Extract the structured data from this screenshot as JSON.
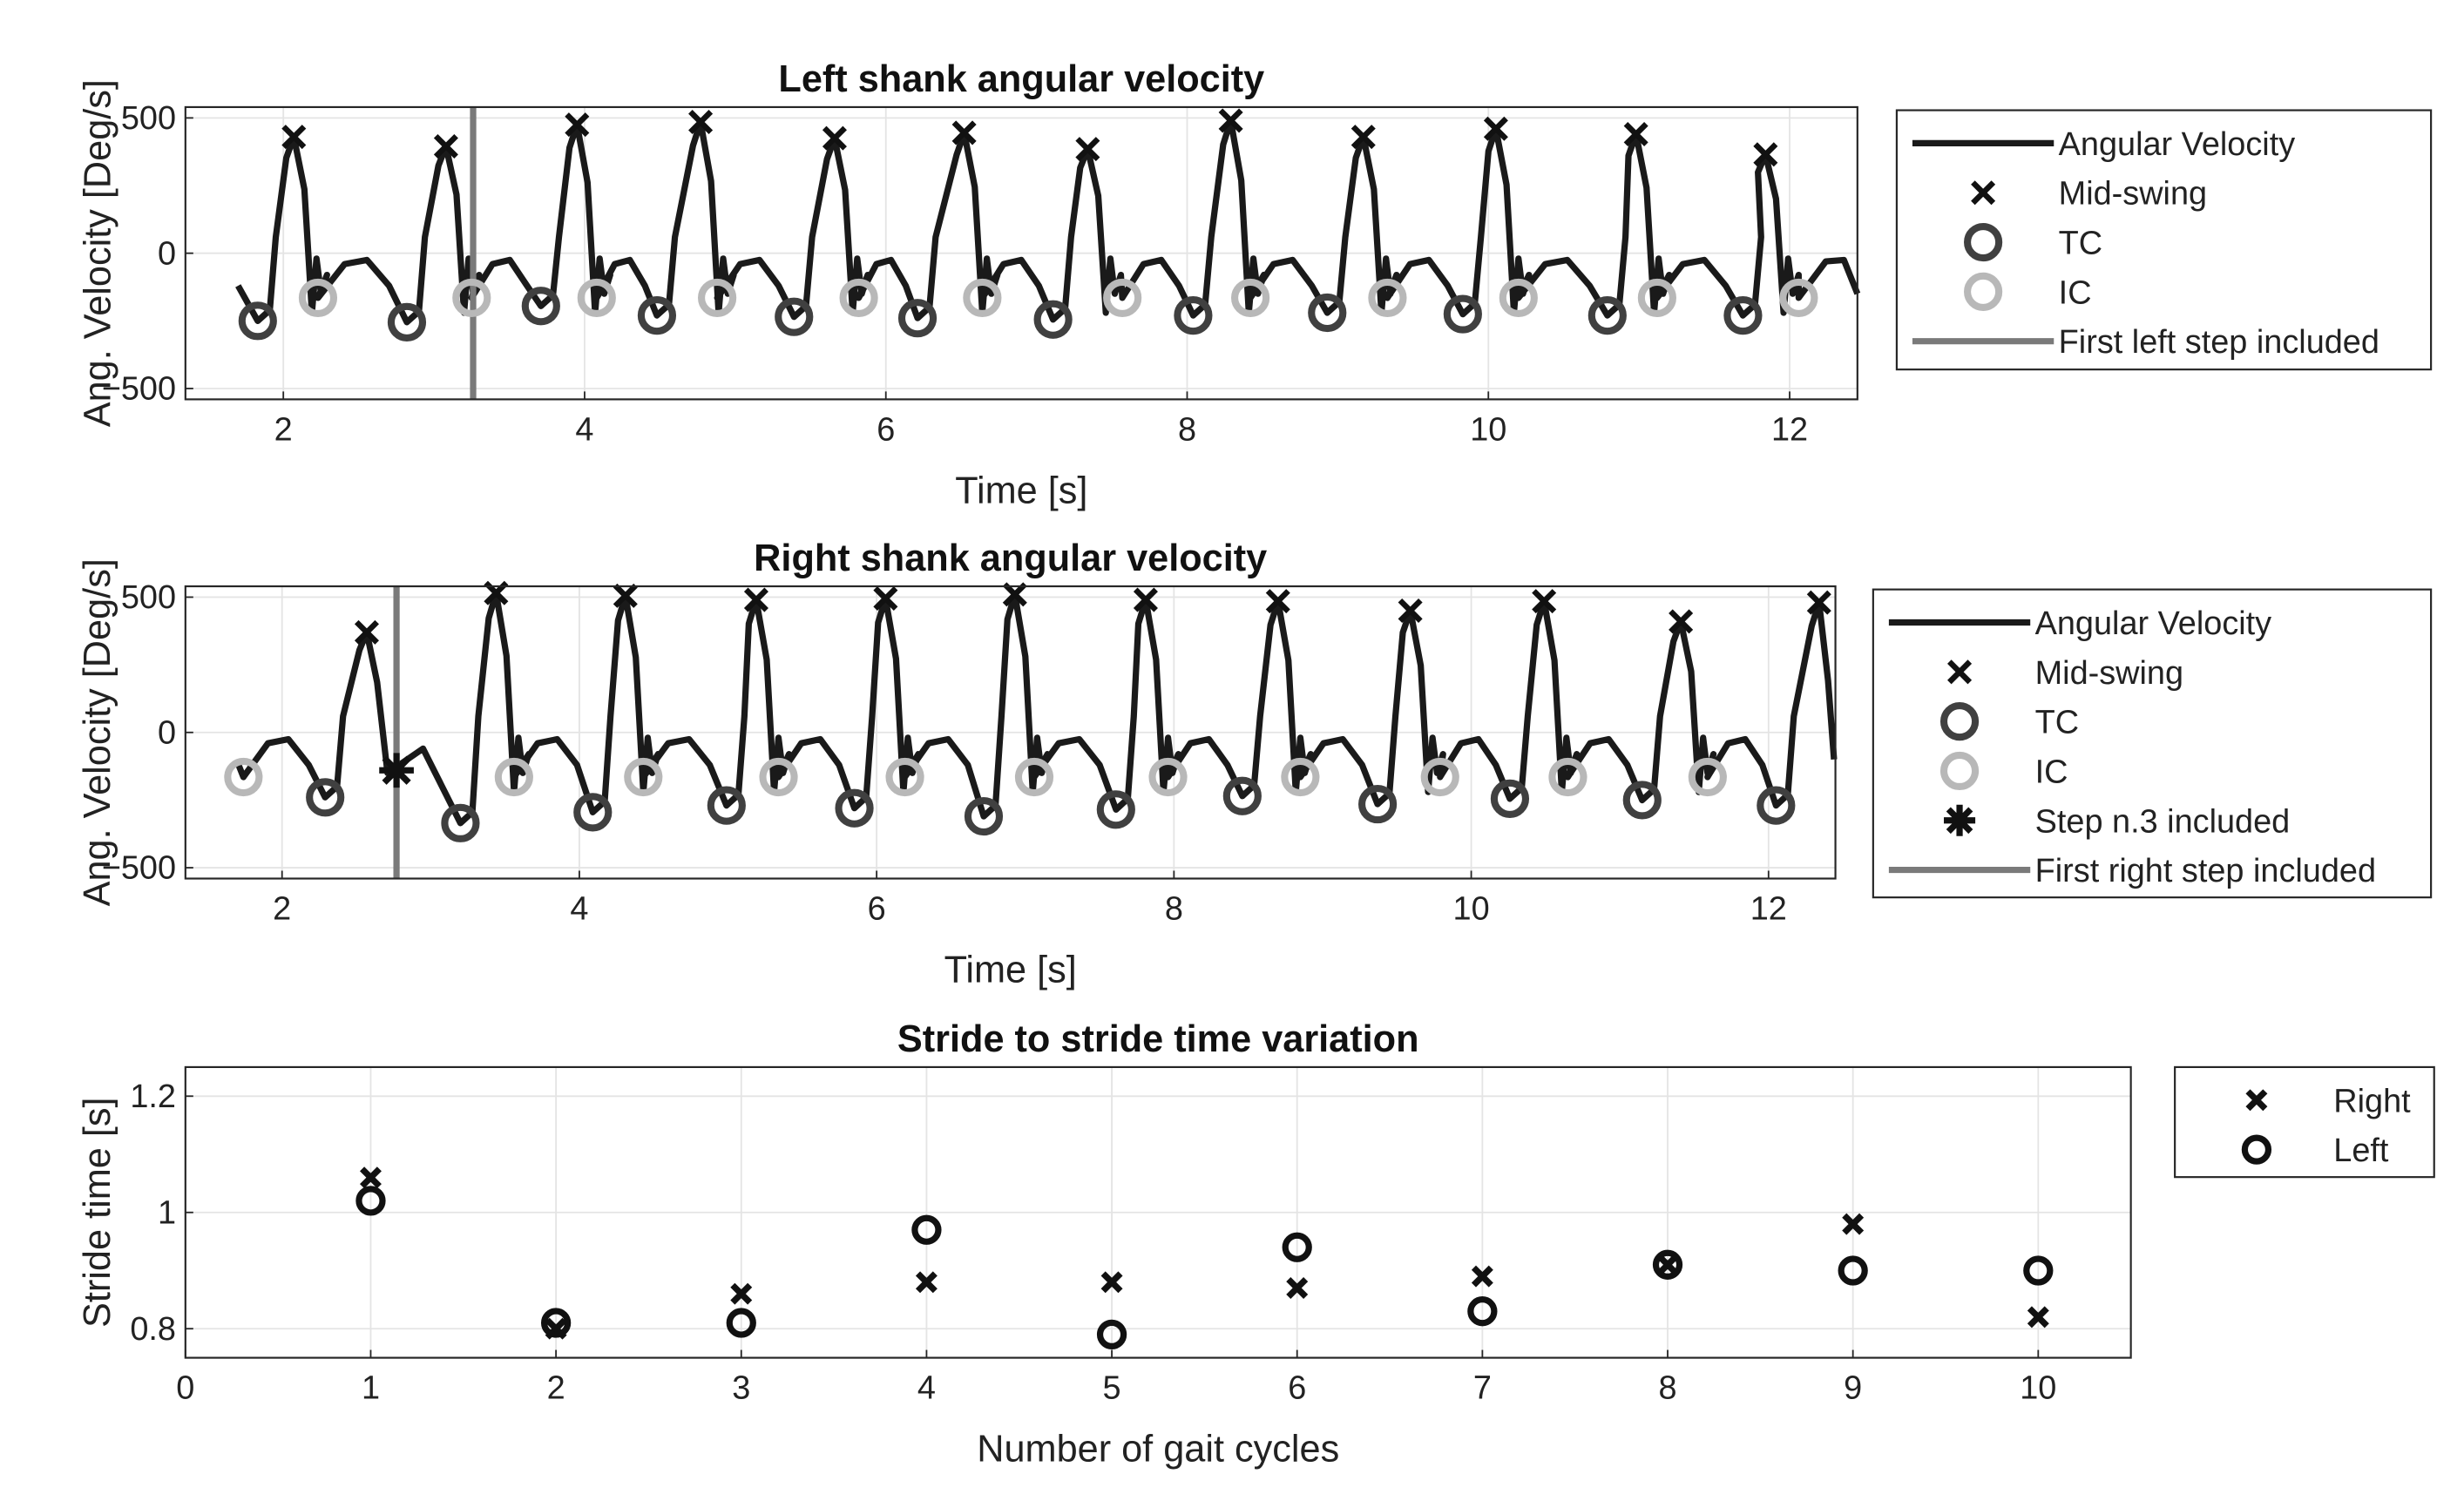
{
  "chart_data": [
    {
      "id": "left",
      "type": "line",
      "title": "Left shank angular velocity",
      "xlabel": "Time [s]",
      "ylabel": "Ang. Velocity [Deg/s]",
      "xlim": [
        1.35,
        12.45
      ],
      "ylim": [
        -540,
        540
      ],
      "xticks": [
        2,
        4,
        6,
        8,
        10,
        12
      ],
      "yticks": [
        -500,
        0,
        500
      ],
      "grid": true,
      "legend_position": "right",
      "legend": [
        "Angular Velocity",
        "Mid-swing",
        "TC",
        "IC",
        "First left step included"
      ],
      "first_step_time": 3.26,
      "mid_swing": {
        "t": [
          2.07,
          3.08,
          3.95,
          4.77,
          5.66,
          6.52,
          7.34,
          8.29,
          9.17,
          10.05,
          10.98,
          11.84
        ],
        "v": [
          430,
          395,
          475,
          485,
          425,
          445,
          385,
          490,
          430,
          460,
          440,
          365
        ]
      },
      "tc": {
        "t": [
          1.83,
          2.82,
          3.71,
          4.48,
          5.39,
          6.21,
          7.11,
          8.04,
          8.93,
          9.83,
          10.79,
          11.69
        ],
        "v": [
          -250,
          -255,
          -195,
          -230,
          -235,
          -240,
          -245,
          -230,
          -220,
          -225,
          -230,
          -230
        ]
      },
      "ic": {
        "t": [
          2.23,
          3.25,
          4.08,
          4.88,
          5.82,
          6.64,
          7.57,
          8.42,
          9.33,
          10.2,
          11.12,
          12.06
        ]
      }
    },
    {
      "id": "right",
      "type": "line",
      "title": "Right shank angular velocity",
      "xlabel": "Time [s]",
      "ylabel": "Ang. Velocity [Deg/s]",
      "xlim": [
        1.35,
        12.45
      ],
      "ylim": [
        -540,
        540
      ],
      "xticks": [
        2,
        4,
        6,
        8,
        10,
        12
      ],
      "yticks": [
        -500,
        0,
        500
      ],
      "grid": true,
      "legend_position": "right",
      "legend": [
        "Angular Velocity",
        "Mid-swing",
        "TC",
        "IC",
        "Step n.3 included",
        "First right step included"
      ],
      "first_step_time": 2.77,
      "step3": {
        "t": 2.77,
        "v": -140
      },
      "mid_swing": {
        "t": [
          2.57,
          3.44,
          4.31,
          5.19,
          6.06,
          6.93,
          7.81,
          8.7,
          9.59,
          10.49,
          11.41,
          12.34
        ],
        "v": [
          370,
          515,
          505,
          490,
          495,
          510,
          490,
          485,
          450,
          485,
          410,
          480
        ]
      },
      "tc": {
        "t": [
          2.29,
          3.2,
          4.09,
          4.99,
          5.85,
          6.72,
          7.61,
          8.46,
          9.37,
          10.26,
          11.15,
          12.05
        ],
        "v": [
          -240,
          -335,
          -295,
          -270,
          -280,
          -310,
          -285,
          -235,
          -265,
          -245,
          -250,
          -270
        ]
      },
      "ic": {
        "t": [
          1.74,
          3.56,
          4.43,
          5.34,
          6.19,
          7.06,
          7.96,
          8.85,
          9.79,
          10.65,
          11.59
        ]
      }
    },
    {
      "id": "stride",
      "type": "scatter",
      "title": "Stride to stride time variation",
      "xlabel": "Number of gait cycles",
      "ylabel": "Stride time [s]",
      "xlim": [
        0,
        10.5
      ],
      "ylim": [
        0.75,
        1.25
      ],
      "xticks": [
        0,
        1,
        2,
        3,
        4,
        5,
        6,
        7,
        8,
        9,
        10
      ],
      "yticks": [
        0.8,
        1,
        1.2
      ],
      "grid": true,
      "legend_position": "right",
      "categories": [
        1,
        2,
        3,
        4,
        5,
        6,
        7,
        8,
        9,
        10
      ],
      "series": [
        {
          "name": "Right",
          "marker": "x",
          "values": [
            1.06,
            0.8,
            0.86,
            0.88,
            0.88,
            0.87,
            0.89,
            0.91,
            0.98,
            0.82
          ]
        },
        {
          "name": "Left",
          "marker": "o",
          "values": [
            1.02,
            0.81,
            0.81,
            0.97,
            0.79,
            0.94,
            0.83,
            0.91,
            0.9,
            0.9
          ]
        }
      ]
    }
  ],
  "colors": {
    "line": "#1a1a1a",
    "tc": "#404040",
    "ic": "#b8b8b8",
    "first_step": "#7a7a7a",
    "grid": "#e4e4e4",
    "axis": "#262626"
  }
}
